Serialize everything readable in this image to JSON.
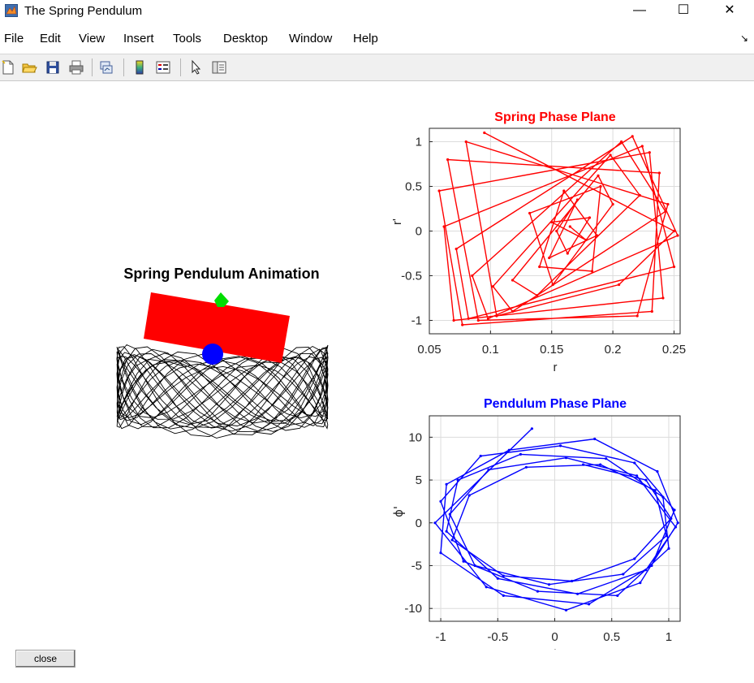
{
  "window": {
    "title": "The Spring Pendulum",
    "controls": {
      "minimize": "—",
      "maximize": "☐",
      "close": "✕"
    }
  },
  "menu": [
    "File",
    "Edit",
    "View",
    "Insert",
    "Tools",
    "Desktop",
    "Window",
    "Help"
  ],
  "toolbar": {
    "icons": [
      "new-file-icon",
      "open-folder-icon",
      "save-icon",
      "print-icon",
      "link-plot-icon",
      "colorbar-icon",
      "legend-icon",
      "pointer-icon",
      "property-editor-icon"
    ]
  },
  "animation": {
    "title": "Spring Pendulum Animation",
    "colors": {
      "block": "#ff0000",
      "bob": "#0000ff",
      "pivot": "#00dd00",
      "trace": "#000000"
    }
  },
  "spring_plot": {
    "title": "Spring Phase Plane",
    "xlabel": "r",
    "ylabel": "r'",
    "xticks": [
      "0.05",
      "0.1",
      "0.15",
      "0.2",
      "0.25"
    ],
    "yticks": [
      "1",
      "0.5",
      "0",
      "-0.5",
      "-1"
    ],
    "color": "#ff0000"
  },
  "pendulum_plot": {
    "title": "Pendulum Phase Plane",
    "xlabel": "ϕ",
    "ylabel": "ϕ'",
    "xticks": [
      "-1",
      "-0.5",
      "0",
      "0.5",
      "1"
    ],
    "yticks": [
      "10",
      "5",
      "0",
      "-5",
      "-10"
    ],
    "color": "#0000ff"
  },
  "chart_data": [
    {
      "type": "line",
      "title": "Spring Phase Plane",
      "xlabel": "r",
      "ylabel": "r'",
      "xlim": [
        0.05,
        0.255
      ],
      "ylim": [
        -1.15,
        1.15
      ],
      "grid": true,
      "color": "#ff0000",
      "series": [
        {
          "x": [
            0.165,
            0.178,
            0.15,
            0.181,
            0.163,
            0.154,
            0.171,
            0.148,
            0.187,
            0.16,
            0.14,
            0.183,
            0.19,
            0.132,
            0.151,
            0.2,
            0.188,
            0.118,
            0.138,
            0.222,
            0.198,
            0.102,
            0.118,
            0.243,
            0.207,
            0.085,
            0.098,
            0.253,
            0.216,
            0.072,
            0.082,
            0.25,
            0.224,
            0.062,
            0.07,
            0.241,
            0.23,
            0.058,
            0.077,
            0.232,
            0.238,
            0.065,
            0.09,
            0.22,
            0.245,
            0.08,
            0.105,
            0.205,
            0.25,
            0.095
          ],
          "y": [
            0.05,
            -0.1,
            0.1,
            0.15,
            -0.25,
            0.0,
            0.35,
            -0.3,
            -0.05,
            0.45,
            -0.4,
            -0.45,
            0.5,
            0.2,
            -0.6,
            0.3,
            0.62,
            -0.55,
            -0.72,
            0.4,
            0.85,
            -0.62,
            -0.9,
            0.22,
            1.0,
            -0.5,
            -0.98,
            -0.05,
            1.06,
            -0.2,
            -0.98,
            -0.4,
            0.95,
            0.05,
            -1.0,
            -0.75,
            0.88,
            0.45,
            -1.05,
            -0.9,
            0.65,
            0.8,
            -1.0,
            -0.95,
            0.3,
            1.0,
            -0.95,
            -0.6,
            0.0,
            1.1
          ]
        }
      ]
    },
    {
      "type": "line",
      "title": "Pendulum Phase Plane",
      "xlabel": "ϕ",
      "ylabel": "ϕ'",
      "xlim": [
        -1.1,
        1.1
      ],
      "ylim": [
        -11.5,
        12.5
      ],
      "grid": true,
      "color": "#0000ff",
      "series": [
        {
          "x": [
            -0.2,
            -1.05,
            -0.6,
            0.1,
            0.75,
            1.08,
            0.9,
            0.35,
            -0.4,
            -0.95,
            -1.0,
            -0.45,
            0.3,
            0.85,
            1.05,
            0.7,
            0.05,
            -0.65,
            -1.0,
            -0.8,
            -0.15,
            0.55,
            1.0,
            0.95,
            0.45,
            -0.3,
            -0.85,
            -0.95,
            -0.5,
            0.2,
            0.8,
            1.06,
            0.72,
            0.1,
            -0.58,
            -0.92,
            -0.7,
            -0.05,
            0.6,
            0.98,
            0.88,
            0.4,
            -0.25,
            -0.75,
            -0.9,
            -0.45,
            0.15,
            0.7,
            1.02,
            0.8,
            0.25
          ],
          "y": [
            11.0,
            0.0,
            -7.5,
            -10.2,
            -7.0,
            0.0,
            6.0,
            9.8,
            8.5,
            4.5,
            -3.5,
            -8.5,
            -9.5,
            -5.0,
            1.5,
            7.0,
            9.0,
            7.8,
            2.5,
            -4.5,
            -8.0,
            -8.5,
            -3.0,
            3.0,
            7.5,
            8.0,
            5.0,
            -1.0,
            -6.5,
            -8.3,
            -5.5,
            -0.5,
            5.5,
            7.6,
            6.2,
            1.0,
            -5.0,
            -7.2,
            -6.0,
            -1.5,
            3.8,
            6.8,
            6.5,
            3.2,
            -2.0,
            -6.2,
            -6.8,
            -4.2,
            0.5,
            5.0,
            6.8
          ]
        }
      ]
    }
  ]
}
